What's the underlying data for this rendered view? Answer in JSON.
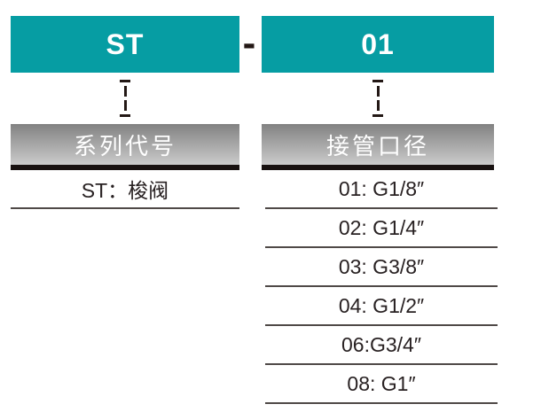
{
  "diagram": {
    "accent_color": "#069da3",
    "header_black_bar_color": "#181110",
    "separator": "-",
    "columns": [
      {
        "code": "ST",
        "category": "系列代号",
        "options": [
          "ST：梭阀"
        ]
      },
      {
        "code": "01",
        "category": "接管口径",
        "options": [
          "01: G1/8″",
          "02: G1/4″",
          "03: G3/8″",
          "04: G1/2″",
          "06:G3/4″",
          "08: G1″"
        ]
      }
    ]
  }
}
